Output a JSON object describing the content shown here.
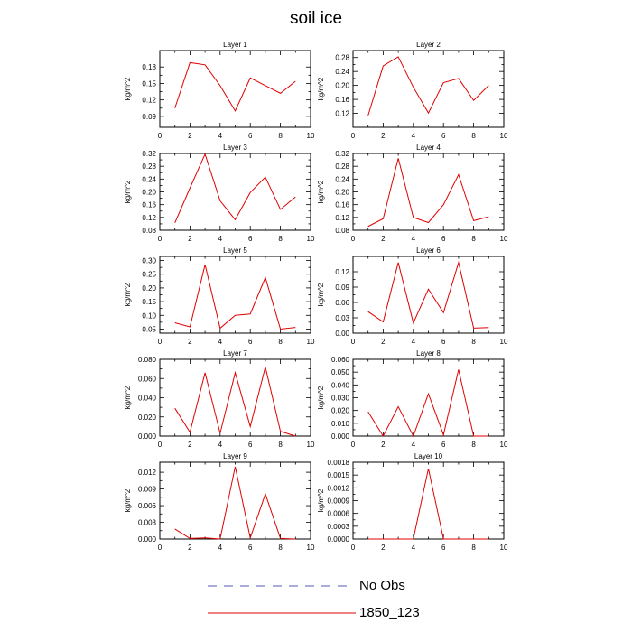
{
  "page": {
    "title": "soil ice"
  },
  "legend": {
    "entries": [
      {
        "label": "No Obs",
        "style": "dashed",
        "color": "#5a5ab4"
      },
      {
        "label": "1850_123",
        "style": "solid",
        "color": "#e00000"
      }
    ]
  },
  "chart_data": [
    {
      "type": "line",
      "title": "Layer 1",
      "ylabel": "kg/m^2",
      "x": [
        1,
        2,
        3,
        4,
        5,
        6,
        7,
        8,
        9
      ],
      "series": [
        {
          "name": "1850_123",
          "values": [
            0.105,
            0.188,
            0.184,
            0.146,
            0.1,
            0.16,
            0.146,
            0.132,
            0.154
          ]
        }
      ],
      "xlim": [
        0,
        10
      ],
      "ylim": [
        0.07,
        0.21
      ],
      "xticks": [
        0,
        2,
        4,
        6,
        8,
        10
      ],
      "yticks": [
        0.09,
        0.12,
        0.15,
        0.18
      ],
      "ytick_labels": [
        "0.09",
        "0.12",
        "0.15",
        "0.18"
      ],
      "color": "#e00000"
    },
    {
      "type": "line",
      "title": "Layer 2",
      "ylabel": "kg/m^2",
      "x": [
        1,
        2,
        3,
        4,
        5,
        6,
        7,
        8,
        9
      ],
      "series": [
        {
          "name": "1850_123",
          "values": [
            0.114,
            0.256,
            0.282,
            0.195,
            0.121,
            0.208,
            0.22,
            0.157,
            0.2
          ]
        }
      ],
      "xlim": [
        0,
        10
      ],
      "ylim": [
        0.08,
        0.3
      ],
      "xticks": [
        0,
        2,
        4,
        6,
        8,
        10
      ],
      "yticks": [
        0.12,
        0.16,
        0.2,
        0.24,
        0.28
      ],
      "ytick_labels": [
        "0.12",
        "0.16",
        "0.20",
        "0.24",
        "0.28"
      ],
      "color": "#e00000"
    },
    {
      "type": "line",
      "title": "Layer 3",
      "ylabel": "kg/m^2",
      "x": [
        1,
        2,
        3,
        4,
        5,
        6,
        7,
        8,
        9
      ],
      "series": [
        {
          "name": "1850_123",
          "values": [
            0.103,
            0.212,
            0.318,
            0.172,
            0.113,
            0.198,
            0.246,
            0.145,
            0.184
          ]
        }
      ],
      "xlim": [
        0,
        10
      ],
      "ylim": [
        0.08,
        0.32
      ],
      "xticks": [
        0,
        2,
        4,
        6,
        8,
        10
      ],
      "yticks": [
        0.08,
        0.12,
        0.16,
        0.2,
        0.24,
        0.28,
        0.32
      ],
      "ytick_labels": [
        "0.08",
        "0.12",
        "0.16",
        "0.20",
        "0.24",
        "0.28",
        "0.32"
      ],
      "color": "#e00000"
    },
    {
      "type": "line",
      "title": "Layer 4",
      "ylabel": "kg/m^2",
      "x": [
        1,
        2,
        3,
        4,
        5,
        6,
        7,
        8,
        9
      ],
      "series": [
        {
          "name": "1850_123",
          "values": [
            0.092,
            0.116,
            0.305,
            0.12,
            0.104,
            0.16,
            0.254,
            0.11,
            0.122
          ]
        }
      ],
      "xlim": [
        0,
        10
      ],
      "ylim": [
        0.08,
        0.32
      ],
      "xticks": [
        0,
        2,
        4,
        6,
        8,
        10
      ],
      "yticks": [
        0.08,
        0.12,
        0.16,
        0.2,
        0.24,
        0.28,
        0.32
      ],
      "ytick_labels": [
        "0.08",
        "0.12",
        "0.16",
        "0.20",
        "0.24",
        "0.28",
        "0.32"
      ],
      "color": "#e00000"
    },
    {
      "type": "line",
      "title": "Layer 5",
      "ylabel": "kg/m^2",
      "x": [
        1,
        2,
        3,
        4,
        5,
        6,
        7,
        8,
        9
      ],
      "series": [
        {
          "name": "1850_123",
          "values": [
            0.073,
            0.058,
            0.285,
            0.053,
            0.1,
            0.105,
            0.238,
            0.05,
            0.056
          ]
        }
      ],
      "xlim": [
        0,
        10
      ],
      "ylim": [
        0.035,
        0.315
      ],
      "xticks": [
        0,
        2,
        4,
        6,
        8,
        10
      ],
      "yticks": [
        0.05,
        0.1,
        0.15,
        0.2,
        0.25,
        0.3
      ],
      "ytick_labels": [
        "0.05",
        "0.10",
        "0.15",
        "0.20",
        "0.25",
        "0.30"
      ],
      "color": "#e00000"
    },
    {
      "type": "line",
      "title": "Layer 6",
      "ylabel": "kg/m^2",
      "x": [
        1,
        2,
        3,
        4,
        5,
        6,
        7,
        8,
        9
      ],
      "series": [
        {
          "name": "1850_123",
          "values": [
            0.042,
            0.022,
            0.138,
            0.02,
            0.086,
            0.04,
            0.138,
            0.01,
            0.011
          ]
        }
      ],
      "xlim": [
        0,
        10
      ],
      "ylim": [
        0,
        0.15
      ],
      "xticks": [
        0,
        2,
        4,
        6,
        8,
        10
      ],
      "yticks": [
        0,
        0.03,
        0.06,
        0.09,
        0.12
      ],
      "ytick_labels": [
        "0.00",
        "0.03",
        "0.06",
        "0.09",
        "0.12"
      ],
      "color": "#e00000"
    },
    {
      "type": "line",
      "title": "Layer 7",
      "ylabel": "kg/m^2",
      "x": [
        1,
        2,
        3,
        4,
        5,
        6,
        7,
        8,
        9
      ],
      "series": [
        {
          "name": "1850_123",
          "values": [
            0.029,
            0.004,
            0.066,
            0.003,
            0.066,
            0.01,
            0.072,
            0.005,
            0.0
          ]
        }
      ],
      "xlim": [
        0,
        10
      ],
      "ylim": [
        0,
        0.08
      ],
      "xticks": [
        0,
        2,
        4,
        6,
        8,
        10
      ],
      "yticks": [
        0,
        0.02,
        0.04,
        0.06,
        0.08
      ],
      "ytick_labels": [
        "0.000",
        "0.020",
        "0.040",
        "0.060",
        "0.080"
      ],
      "color": "#e00000"
    },
    {
      "type": "line",
      "title": "Layer 8",
      "ylabel": "kg/m^2",
      "x": [
        1,
        2,
        3,
        4,
        5,
        6,
        7,
        8,
        9
      ],
      "series": [
        {
          "name": "1850_123",
          "values": [
            0.019,
            0.0,
            0.023,
            0.0,
            0.033,
            0.001,
            0.052,
            0.0,
            0.0
          ]
        }
      ],
      "xlim": [
        0,
        10
      ],
      "ylim": [
        0,
        0.06
      ],
      "xticks": [
        0,
        2,
        4,
        6,
        8,
        10
      ],
      "yticks": [
        0,
        0.01,
        0.02,
        0.03,
        0.04,
        0.05,
        0.06
      ],
      "ytick_labels": [
        "0.000",
        "0.010",
        "0.020",
        "0.030",
        "0.040",
        "0.050",
        "0.060"
      ],
      "color": "#e00000"
    },
    {
      "type": "line",
      "title": "Layer 9",
      "ylabel": "kg/m^2",
      "x": [
        1,
        2,
        3,
        4,
        5,
        6,
        7,
        8,
        9
      ],
      "series": [
        {
          "name": "1850_123",
          "values": [
            0.0018,
            0.0001,
            0.0002,
            0.0,
            0.013,
            0.0002,
            0.0081,
            0.0001,
            0.0
          ]
        }
      ],
      "xlim": [
        0,
        10
      ],
      "ylim": [
        0,
        0.0138
      ],
      "xticks": [
        0,
        2,
        4,
        6,
        8,
        10
      ],
      "yticks": [
        0,
        0.003,
        0.006,
        0.009,
        0.012
      ],
      "ytick_labels": [
        "0.000",
        "0.003",
        "0.006",
        "0.009",
        "0.012"
      ],
      "color": "#e00000"
    },
    {
      "type": "line",
      "title": "Layer 10",
      "ylabel": "kg/m^2",
      "x": [
        1,
        2,
        3,
        4,
        5,
        6,
        7,
        8,
        9
      ],
      "series": [
        {
          "name": "1850_123",
          "values": [
            0,
            0,
            0,
            0,
            0.00165,
            0,
            0,
            0,
            0
          ]
        }
      ],
      "xlim": [
        0,
        10
      ],
      "ylim": [
        0,
        0.0018
      ],
      "xticks": [
        0,
        2,
        4,
        6,
        8,
        10
      ],
      "yticks": [
        0,
        0.0003,
        0.0006,
        0.0009,
        0.0012,
        0.0015,
        0.0018
      ],
      "ytick_labels": [
        "0.0000",
        "0.0003",
        "0.0006",
        "0.0009",
        "0.0012",
        "0.0015",
        "0.0018"
      ],
      "color": "#e00000"
    }
  ]
}
